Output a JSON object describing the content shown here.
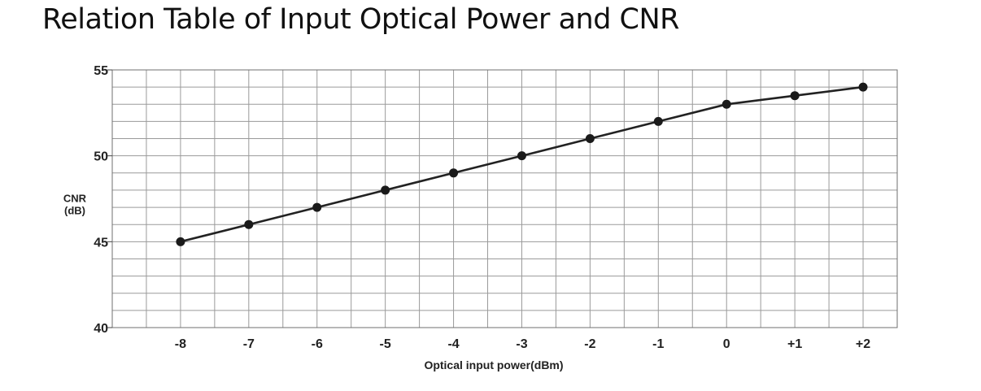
{
  "chart_data": {
    "type": "line",
    "title": "Relation Table of Input Optical Power and CNR",
    "xlabel": "Optical input power(dBm)",
    "ylabel_line1": "CNR",
    "ylabel_line2": "(dB)",
    "x_tick_labels": [
      "-8",
      "-7",
      "-6",
      "-5",
      "-4",
      "-3",
      "-2",
      "-1",
      "0",
      "+1",
      "+2"
    ],
    "y_tick_labels": [
      "40",
      "45",
      "50",
      "55"
    ],
    "y_ticks": [
      40,
      45,
      50,
      55
    ],
    "x": [
      -8,
      -7,
      -6,
      -5,
      -4,
      -3,
      -2,
      -1,
      0,
      1,
      2
    ],
    "series": [
      {
        "values": [
          45,
          46,
          47,
          48,
          49,
          50,
          51,
          52,
          53,
          53.5,
          54
        ]
      }
    ],
    "xlim": [
      -9,
      2.5
    ],
    "ylim": [
      40,
      55
    ],
    "grid": true,
    "line_color": "#222222",
    "grid_color": "#9a9a9a"
  }
}
